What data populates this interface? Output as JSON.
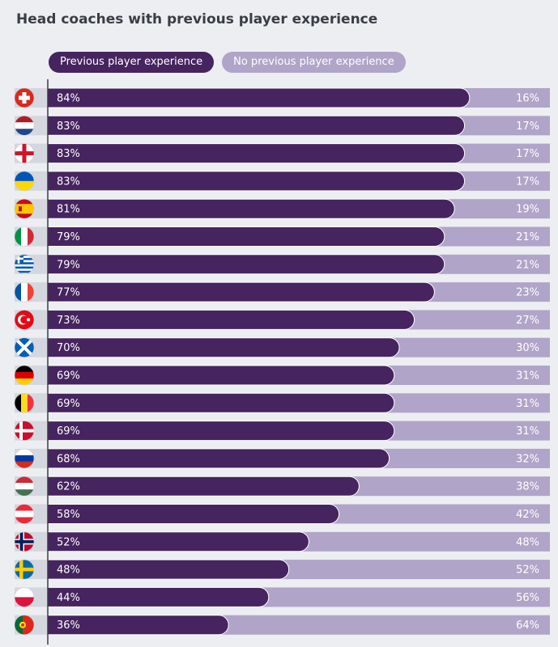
{
  "title": "Head coaches with previous player experience",
  "chart_data": {
    "type": "bar",
    "orientation": "horizontal",
    "stacked": true,
    "title": "Head coaches with previous player experience",
    "legend_position": "top-left",
    "xlim": [
      0,
      100
    ],
    "categories": [
      "Switzerland",
      "Netherlands",
      "England",
      "Ukraine",
      "Spain",
      "Italy",
      "Greece",
      "France",
      "Turkey",
      "Scotland",
      "Germany",
      "Belgium",
      "Denmark",
      "Russia",
      "Hungary",
      "Austria",
      "Norway",
      "Sweden",
      "Poland",
      "Portugal"
    ],
    "series": [
      {
        "name": "Previous player experience",
        "color": "#46245f",
        "values": [
          84,
          83,
          83,
          83,
          81,
          79,
          79,
          77,
          73,
          70,
          69,
          69,
          69,
          68,
          62,
          58,
          52,
          48,
          44,
          36
        ]
      },
      {
        "name": "No previous player experience",
        "color": "#b0a5c8",
        "values": [
          16,
          17,
          17,
          17,
          19,
          21,
          21,
          23,
          27,
          30,
          31,
          31,
          31,
          32,
          38,
          42,
          48,
          52,
          56,
          64
        ]
      }
    ],
    "labels_a": [
      "84%",
      "83%",
      "83%",
      "83%",
      "81%",
      "79%",
      "79%",
      "77%",
      "73%",
      "70%",
      "69%",
      "69%",
      "69%",
      "68%",
      "62%",
      "58%",
      "52%",
      "48%",
      "44%",
      "36%"
    ],
    "labels_b": [
      "16%",
      "17%",
      "17%",
      "17%",
      "19%",
      "21%",
      "21%",
      "23%",
      "27%",
      "30%",
      "31%",
      "31%",
      "31%",
      "32%",
      "38%",
      "42%",
      "48%",
      "52%",
      "56%",
      "64%"
    ],
    "flags": [
      "swiss-flag-icon",
      "netherlands-flag-icon",
      "england-flag-icon",
      "ukraine-flag-icon",
      "spain-flag-icon",
      "italy-flag-icon",
      "greece-flag-icon",
      "france-flag-icon",
      "turkey-flag-icon",
      "scotland-flag-icon",
      "germany-flag-icon",
      "belgium-flag-icon",
      "denmark-flag-icon",
      "russia-flag-icon",
      "hungary-flag-icon",
      "austria-flag-icon",
      "norway-flag-icon",
      "sweden-flag-icon",
      "poland-flag-icon",
      "portugal-flag-icon"
    ]
  }
}
